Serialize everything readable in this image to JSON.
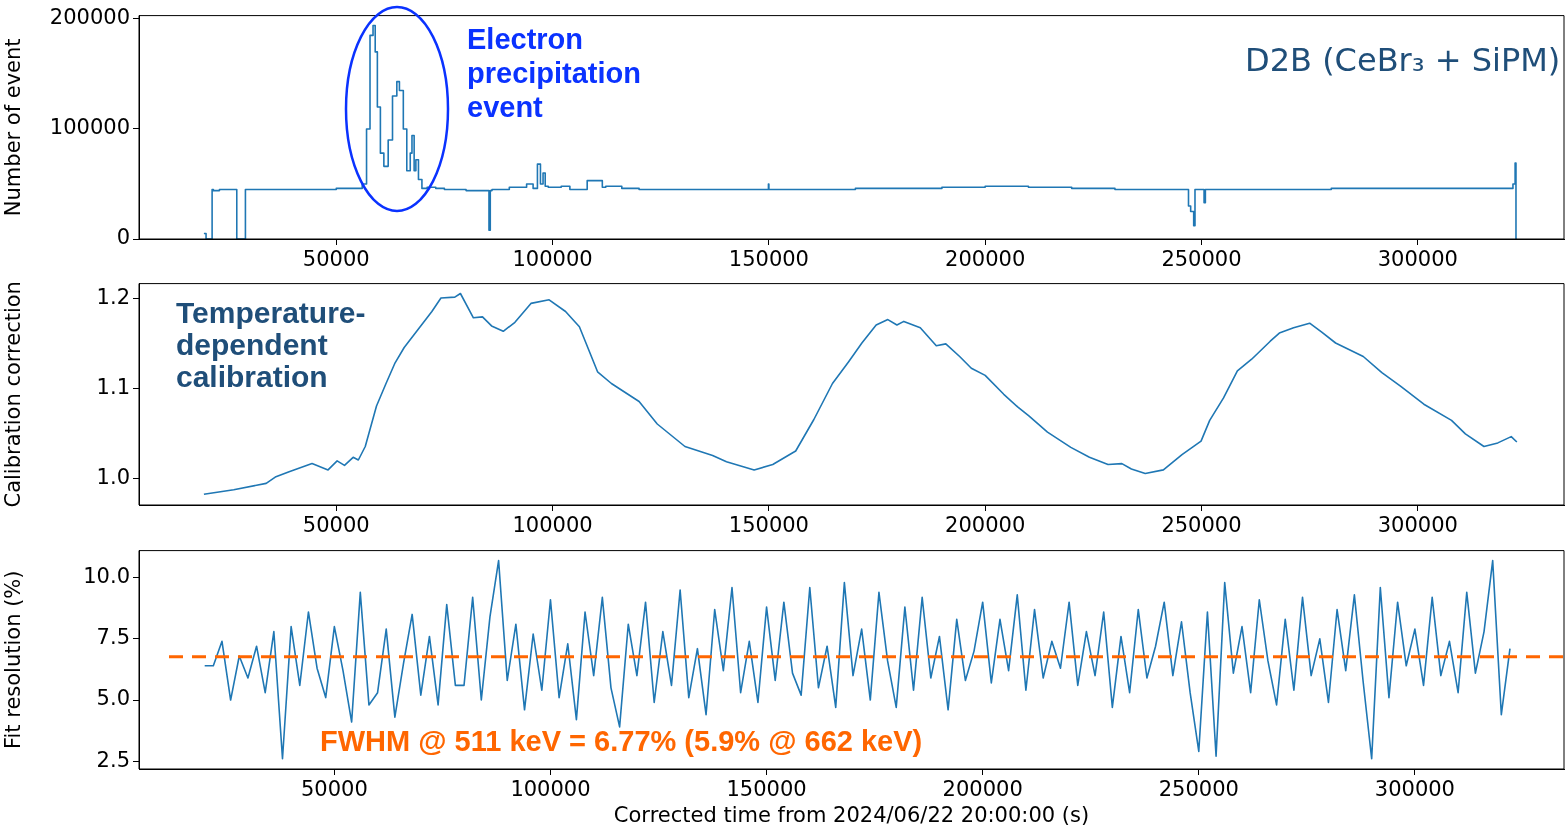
{
  "chart_data": [
    {
      "type": "step",
      "ylabel": "Number of event",
      "x": [
        19400,
        19900,
        20000,
        21300,
        21600,
        23000,
        24000,
        27000,
        27100,
        29000,
        29100,
        40000,
        50000,
        56000,
        57000,
        57800,
        58500,
        59000,
        59500,
        60200,
        61000,
        62000,
        63000,
        64000,
        64600,
        65500,
        66300,
        67100,
        67500,
        68000,
        68400,
        69000,
        69800,
        71000,
        73000,
        75000,
        80000,
        85300,
        85600,
        86000,
        90000,
        94000,
        95500,
        96500,
        97200,
        97800,
        98300,
        99000,
        102000,
        104000,
        108000,
        111500,
        112300,
        116000,
        120000,
        130000,
        140000,
        149900,
        150000,
        150300,
        170000,
        190000,
        200000,
        210000,
        220000,
        230000,
        240000,
        247000,
        247500,
        248200,
        248500,
        249000,
        250600,
        250900,
        251300,
        260000,
        270000,
        280000,
        300000,
        315000,
        322000,
        322500,
        322700,
        322900
      ],
      "series": [
        {
          "color": "#1f77b4",
          "values": [
            5000,
            5000,
            0,
            0,
            45000,
            44000,
            45000,
            45000,
            0,
            0,
            45000,
            45000,
            45000,
            46000,
            50000,
            100000,
            185000,
            194000,
            170000,
            120000,
            78000,
            66000,
            90000,
            130000,
            143000,
            135000,
            100000,
            62000,
            78000,
            94000,
            62000,
            72000,
            54000,
            46000,
            47000,
            46000,
            45000,
            44000,
            8000,
            44000,
            45000,
            47000,
            50000,
            46000,
            68000,
            50000,
            60000,
            48000,
            47000,
            48000,
            45000,
            53000,
            47000,
            48000,
            46000,
            45000,
            45000,
            45000,
            50000,
            45000,
            45000,
            46000,
            47000,
            48000,
            47000,
            46000,
            45000,
            45000,
            30000,
            25000,
            12000,
            45000,
            45000,
            33000,
            45000,
            45000,
            45000,
            45000,
            46000,
            46000,
            46000,
            50000,
            69000,
            0
          ]
        }
      ],
      "xlim": [
        4400,
        333800
      ],
      "xticks": [
        50000,
        100000,
        150000,
        200000,
        250000,
        300000
      ],
      "ylim": [
        0,
        203000
      ],
      "yticks": [
        0,
        100000,
        200000
      ],
      "annotations": [
        "Electron precipitation event",
        "D2B (CeBr₃ + SiPM)"
      ]
    },
    {
      "type": "line",
      "ylabel": "Calibration correction",
      "x": [
        19400,
        26300,
        33800,
        35900,
        39100,
        44400,
        48100,
        50200,
        51900,
        53900,
        55100,
        56700,
        59300,
        61500,
        63600,
        65700,
        68900,
        72100,
        74200,
        77400,
        78700,
        81700,
        83800,
        85900,
        88600,
        91300,
        95000,
        99200,
        103000,
        106200,
        110400,
        113600,
        120000,
        124200,
        130600,
        137000,
        140200,
        146600,
        150900,
        156200,
        160400,
        164700,
        168400,
        171500,
        174800,
        177500,
        179600,
        181200,
        185000,
        188700,
        190900,
        194100,
        196800,
        200000,
        204300,
        207500,
        210100,
        214400,
        219800,
        224100,
        228400,
        231600,
        233800,
        237000,
        241200,
        245500,
        249900,
        251900,
        255100,
        258300,
        261600,
        265900,
        268000,
        271300,
        275000,
        277800,
        281000,
        287400,
        291700,
        296000,
        301400,
        307800,
        311000,
        315300,
        318500,
        321600,
        322900
      ],
      "series": [
        {
          "color": "#1f77b4",
          "values": [
            0.983,
            0.988,
            0.995,
            1.002,
            1.008,
            1.017,
            1.01,
            1.02,
            1.015,
            1.024,
            1.021,
            1.036,
            1.081,
            1.106,
            1.129,
            1.146,
            1.166,
            1.186,
            1.201,
            1.202,
            1.206,
            1.179,
            1.18,
            1.17,
            1.164,
            1.174,
            1.195,
            1.199,
            1.186,
            1.169,
            1.119,
            1.106,
            1.086,
            1.061,
            1.036,
            1.026,
            1.019,
            1.01,
            1.016,
            1.031,
            1.066,
            1.106,
            1.13,
            1.151,
            1.171,
            1.177,
            1.171,
            1.175,
            1.168,
            1.148,
            1.15,
            1.136,
            1.123,
            1.115,
            1.094,
            1.08,
            1.07,
            1.052,
            1.035,
            1.024,
            1.016,
            1.017,
            1.011,
            1.006,
            1.01,
            1.027,
            1.042,
            1.065,
            1.09,
            1.12,
            1.133,
            1.153,
            1.162,
            1.168,
            1.173,
            1.163,
            1.151,
            1.136,
            1.118,
            1.103,
            1.083,
            1.065,
            1.05,
            1.036,
            1.04,
            1.047,
            1.041
          ]
        }
      ],
      "xlim": [
        4400,
        333800
      ],
      "xticks": [
        50000,
        100000,
        150000,
        200000,
        250000,
        300000
      ],
      "ylim": [
        0.971,
        1.217
      ],
      "yticks": [
        {
          "value": 1.0,
          "label": "1.0"
        },
        1.1,
        1.2
      ],
      "annotations": [
        "Temperature-dependent calibration"
      ]
    },
    {
      "type": "line",
      "ylabel": "Fit resolution (%)",
      "xlabel": "Corrected time from 2024/06/22 20:00:00 (s)",
      "x": [
        20000,
        22000,
        24000,
        26000,
        28000,
        30000,
        32000,
        34000,
        36000,
        38000,
        40000,
        42000,
        44000,
        46000,
        48000,
        50000,
        52000,
        54000,
        56000,
        58000,
        60000,
        62000,
        64000,
        66000,
        68000,
        70000,
        72000,
        74000,
        76000,
        78000,
        80000,
        82000,
        84000,
        86000,
        88000,
        90000,
        92000,
        94000,
        96000,
        98000,
        100000,
        102000,
        104000,
        106000,
        108000,
        110000,
        112000,
        114000,
        116000,
        118000,
        120000,
        122000,
        124000,
        126000,
        128000,
        130000,
        132000,
        134000,
        136000,
        138000,
        140000,
        142000,
        144000,
        146000,
        148000,
        150000,
        152000,
        154000,
        156000,
        158000,
        160000,
        162000,
        164000,
        166000,
        168000,
        170000,
        172000,
        174000,
        176000,
        178000,
        180000,
        182000,
        184000,
        186000,
        188000,
        190000,
        192000,
        194000,
        196000,
        198000,
        200000,
        202000,
        204000,
        206000,
        208000,
        210000,
        212000,
        214000,
        216000,
        218000,
        220000,
        222000,
        224000,
        226000,
        228000,
        230000,
        232000,
        234000,
        236000,
        238000,
        240000,
        242000,
        244000,
        246000,
        248000,
        250000,
        252000,
        254000,
        256000,
        258000,
        260000,
        262000,
        264000,
        266000,
        268000,
        270000,
        272000,
        274000,
        276000,
        278000,
        280000,
        282000,
        284000,
        286000,
        288000,
        290000,
        292000,
        294000,
        296000,
        298000,
        300000,
        302000,
        304000,
        306000,
        308000,
        310000,
        312000,
        314000,
        316000,
        318000,
        320000,
        322000
      ],
      "series": [
        {
          "color": "#1f77b4",
          "values": [
            6.4,
            6.4,
            7.4,
            5.0,
            6.8,
            5.9,
            7.2,
            5.3,
            7.8,
            2.6,
            8.0,
            5.6,
            8.6,
            6.3,
            5.1,
            8.0,
            6.2,
            4.1,
            9.4,
            4.8,
            5.3,
            7.9,
            4.3,
            6.5,
            8.5,
            5.2,
            7.6,
            4.8,
            8.9,
            5.6,
            5.6,
            9.2,
            5.0,
            8.4,
            10.7,
            5.8,
            8.1,
            4.6,
            7.7,
            5.4,
            9.1,
            5.1,
            7.3,
            4.2,
            8.6,
            6.0,
            9.2,
            5.5,
            3.9,
            8.1,
            6.0,
            9.0,
            4.9,
            7.8,
            5.6,
            9.5,
            5.1,
            7.1,
            4.4,
            8.7,
            6.2,
            9.6,
            5.3,
            7.4,
            4.9,
            8.8,
            5.8,
            9.0,
            6.1,
            5.2,
            9.6,
            5.5,
            7.2,
            4.7,
            9.8,
            6.0,
            7.9,
            5.0,
            9.4,
            6.6,
            4.7,
            8.8,
            5.4,
            9.2,
            5.9,
            7.6,
            4.6,
            8.3,
            5.8,
            7.0,
            9.0,
            5.7,
            8.3,
            6.2,
            9.3,
            5.4,
            8.7,
            5.9,
            7.4,
            6.3,
            9.0,
            5.6,
            7.8,
            6.0,
            8.6,
            4.7,
            7.6,
            5.3,
            8.7,
            5.9,
            7.2,
            9.0,
            6.0,
            8.2,
            5.3,
            2.9,
            8.6,
            2.7,
            9.8,
            6.1,
            8.0,
            5.3,
            9.1,
            6.6,
            4.8,
            8.3,
            5.4,
            9.2,
            6.0,
            7.5,
            4.9,
            8.7,
            6.2,
            9.3,
            5.8,
            2.6,
            9.6,
            5.1,
            9.0,
            6.4,
            7.9,
            5.6,
            9.2,
            6.0,
            7.4,
            5.3,
            9.4,
            6.1,
            7.8,
            10.7,
            4.4,
            7.1
          ]
        }
      ],
      "xlim": [
        4800,
        334500
      ],
      "xticks": [
        50000,
        100000,
        150000,
        200000,
        250000,
        300000
      ],
      "ylim": [
        2.18,
        11.11
      ],
      "yticks": [
        2.5,
        {
          "value": 5.0,
          "label": "5.0"
        },
        7.5,
        {
          "value": 10.0,
          "label": "10.0"
        }
      ],
      "ref_lines": [
        {
          "axis": "y",
          "value": 6.77,
          "color": "#ff6600",
          "line_style": "dashed"
        }
      ],
      "annotations": [
        "FWHM @ 511 keV = 6.77% (5.9% @ 662 keV)"
      ]
    }
  ]
}
